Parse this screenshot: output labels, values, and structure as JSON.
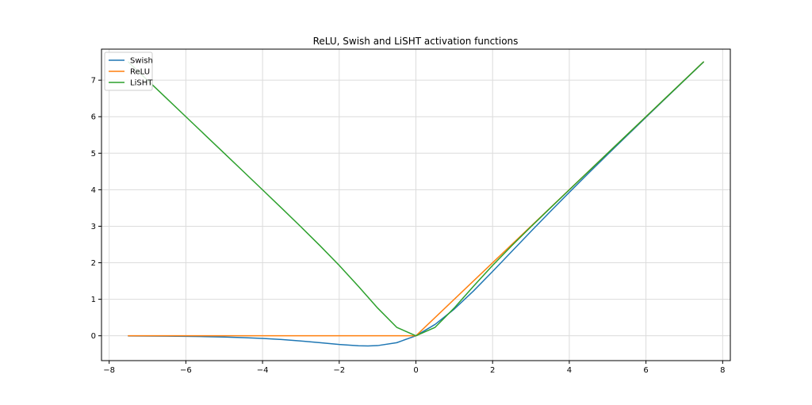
{
  "chart_data": {
    "type": "line",
    "title": "ReLU, Swish and LiSHT activation functions",
    "xlabel": "",
    "ylabel": "",
    "xlim": [
      -8.2,
      8.2
    ],
    "ylim": [
      -0.68,
      7.85
    ],
    "xticks": [
      -8,
      -6,
      -4,
      -2,
      0,
      2,
      4,
      6,
      8
    ],
    "yticks": [
      0,
      1,
      2,
      3,
      4,
      5,
      6,
      7
    ],
    "xtick_labels": [
      "−8",
      "−6",
      "−4",
      "−2",
      "0",
      "2",
      "4",
      "6",
      "8"
    ],
    "ytick_labels": [
      "0",
      "1",
      "2",
      "3",
      "4",
      "5",
      "6",
      "7"
    ],
    "grid": true,
    "legend": "top-left",
    "series": [
      {
        "name": "Swish",
        "color": "#1f77b4",
        "x": [
          -7.5,
          -7.0,
          -6.5,
          -6.0,
          -5.5,
          -5.0,
          -4.5,
          -4.0,
          -3.5,
          -3.0,
          -2.5,
          -2.0,
          -1.5,
          -1.25,
          -1.0,
          -0.5,
          0.0,
          0.5,
          1.0,
          1.5,
          2.0,
          2.5,
          3.0,
          3.5,
          4.0,
          4.5,
          5.0,
          5.5,
          6.0,
          6.5,
          7.0,
          7.5
        ],
        "y": [
          -0.0041,
          -0.0064,
          -0.0098,
          -0.0148,
          -0.0224,
          -0.0335,
          -0.0497,
          -0.0719,
          -0.1026,
          -0.1423,
          -0.1896,
          -0.2384,
          -0.2736,
          -0.2785,
          -0.2689,
          -0.1888,
          0.0,
          0.3112,
          0.7311,
          1.2264,
          1.7616,
          2.3104,
          2.8577,
          3.3974,
          3.9281,
          4.4503,
          4.9665,
          5.4776,
          5.9852,
          6.4902,
          6.9936,
          7.4959
        ]
      },
      {
        "name": "ReLU",
        "color": "#ff7f0e",
        "x": [
          -7.5,
          0.0,
          7.5
        ],
        "y": [
          0.0,
          0.0,
          7.5
        ]
      },
      {
        "name": "LiSHT",
        "color": "#2ca02c",
        "x": [
          -7.5,
          -7.0,
          -6.5,
          -6.0,
          -5.5,
          -5.0,
          -4.5,
          -4.0,
          -3.5,
          -3.0,
          -2.5,
          -2.0,
          -1.5,
          -1.0,
          -0.5,
          0.0,
          0.5,
          1.0,
          1.5,
          2.0,
          2.5,
          3.0,
          3.5,
          4.0,
          4.5,
          5.0,
          5.5,
          6.0,
          6.5,
          7.0,
          7.5
        ],
        "y": [
          7.5,
          7.0,
          6.5,
          5.9999,
          5.4998,
          4.9995,
          4.4989,
          3.9973,
          3.4936,
          2.9852,
          2.4665,
          1.928,
          1.3554,
          0.7616,
          0.2311,
          0.0,
          0.2311,
          0.7616,
          1.3554,
          1.928,
          2.4665,
          2.9852,
          3.4936,
          3.9973,
          4.4989,
          4.9995,
          5.4998,
          5.9999,
          6.5,
          7.0,
          7.5
        ]
      }
    ]
  }
}
